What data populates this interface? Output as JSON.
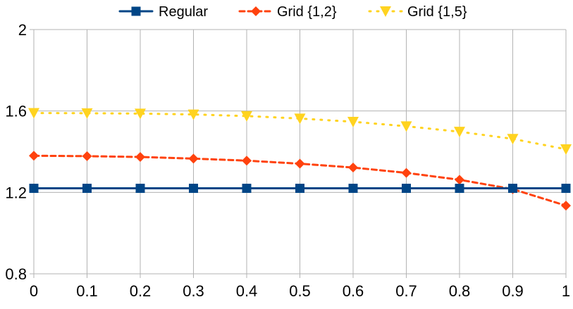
{
  "chart_data": {
    "type": "line",
    "title": "",
    "xlabel": "",
    "ylabel": "",
    "x": [
      0,
      0.1,
      0.2,
      0.3,
      0.4,
      0.5,
      0.6,
      0.7,
      0.8,
      0.9,
      1
    ],
    "xlim": [
      0,
      1
    ],
    "ylim": [
      0.8,
      2
    ],
    "x_ticks": [
      "0",
      "0.1",
      "0.2",
      "0.3",
      "0.4",
      "0.5",
      "0.6",
      "0.7",
      "0.8",
      "0.9",
      "1"
    ],
    "y_ticks": [
      "0.8",
      "1.2",
      "1.6",
      "2"
    ],
    "y_tick_values": [
      0.8,
      1.2,
      1.6,
      2.0
    ],
    "grid": true,
    "legend_position": "top",
    "series": [
      {
        "name": "Regular",
        "color": "#004586",
        "line_style": "solid",
        "marker": "square",
        "values": [
          1.22,
          1.22,
          1.22,
          1.22,
          1.22,
          1.22,
          1.22,
          1.22,
          1.22,
          1.22,
          1.22
        ]
      },
      {
        "name": "Grid {1,2}",
        "color": "#ff420e",
        "line_style": "dashed",
        "marker": "diamond",
        "values": [
          1.38,
          1.378,
          1.374,
          1.366,
          1.356,
          1.341,
          1.322,
          1.296,
          1.262,
          1.216,
          1.135
        ]
      },
      {
        "name": "Grid {1,5}",
        "color": "#ffd320",
        "line_style": "dotted",
        "marker": "triangle-down",
        "values": [
          1.59,
          1.589,
          1.587,
          1.583,
          1.575,
          1.563,
          1.547,
          1.525,
          1.498,
          1.463,
          1.412
        ]
      }
    ]
  }
}
